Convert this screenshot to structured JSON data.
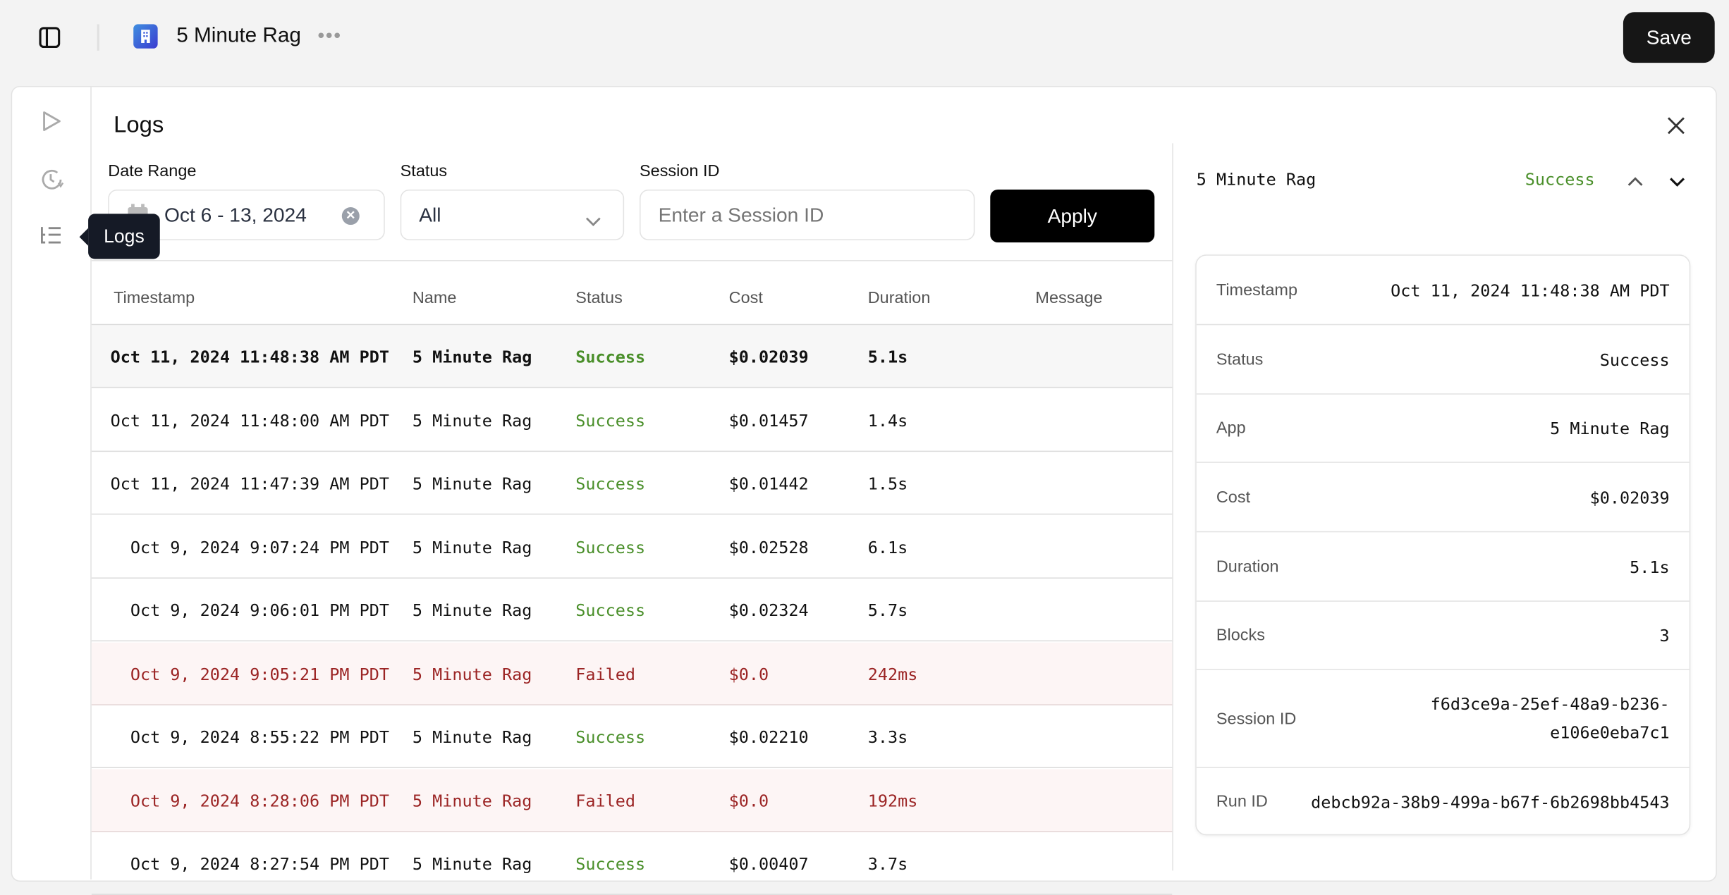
{
  "header": {
    "app_title": "5 Minute Rag",
    "save_label": "Save",
    "app_icon_color": "#3b5bdb"
  },
  "rail": {
    "tooltip": "Logs"
  },
  "logs": {
    "title": "Logs",
    "filters": {
      "date_range_label": "Date Range",
      "date_range_value": "Oct 6 - 13, 2024",
      "status_label": "Status",
      "status_value": "All",
      "session_label": "Session ID",
      "session_placeholder": "Enter a Session ID",
      "apply_label": "Apply"
    },
    "columns": [
      "Timestamp",
      "Name",
      "Status",
      "Cost",
      "Duration",
      "Message"
    ],
    "rows": [
      {
        "timestamp": "Oct 11, 2024 11:48:38 AM PDT",
        "name": "5 Minute Rag",
        "status": "Success",
        "cost": "$0.02039",
        "duration": "5.1s",
        "message": ""
      },
      {
        "timestamp": "Oct 11, 2024 11:48:00 AM PDT",
        "name": "5 Minute Rag",
        "status": "Success",
        "cost": "$0.01457",
        "duration": "1.4s",
        "message": ""
      },
      {
        "timestamp": "Oct 11, 2024 11:47:39 AM PDT",
        "name": "5 Minute Rag",
        "status": "Success",
        "cost": "$0.01442",
        "duration": "1.5s",
        "message": ""
      },
      {
        "timestamp": "Oct 9, 2024 9:07:24 PM PDT",
        "name": "5 Minute Rag",
        "status": "Success",
        "cost": "$0.02528",
        "duration": "6.1s",
        "message": ""
      },
      {
        "timestamp": "Oct 9, 2024 9:06:01 PM PDT",
        "name": "5 Minute Rag",
        "status": "Success",
        "cost": "$0.02324",
        "duration": "5.7s",
        "message": ""
      },
      {
        "timestamp": "Oct 9, 2024 9:05:21 PM PDT",
        "name": "5 Minute Rag",
        "status": "Failed",
        "cost": "$0.0",
        "duration": "242ms",
        "message": ""
      },
      {
        "timestamp": "Oct 9, 2024 8:55:22 PM PDT",
        "name": "5 Minute Rag",
        "status": "Success",
        "cost": "$0.02210",
        "duration": "3.3s",
        "message": ""
      },
      {
        "timestamp": "Oct 9, 2024 8:28:06 PM PDT",
        "name": "5 Minute Rag",
        "status": "Failed",
        "cost": "$0.0",
        "duration": "192ms",
        "message": ""
      },
      {
        "timestamp": "Oct 9, 2024 8:27:54 PM PDT",
        "name": "5 Minute Rag",
        "status": "Success",
        "cost": "$0.00407",
        "duration": "3.7s",
        "message": ""
      }
    ]
  },
  "detail": {
    "name": "5 Minute Rag",
    "status": "Success",
    "fields": [
      {
        "label": "Timestamp",
        "value": "Oct 11, 2024 11:48:38 AM PDT"
      },
      {
        "label": "Status",
        "value": "Success"
      },
      {
        "label": "App",
        "value": "5 Minute Rag"
      },
      {
        "label": "Cost",
        "value": "$0.02039"
      },
      {
        "label": "Duration",
        "value": "5.1s"
      },
      {
        "label": "Blocks",
        "value": "3"
      },
      {
        "label": "Session ID",
        "value": "f6d3ce9a-25ef-48a9-b236-e106e0eba7c1"
      },
      {
        "label": "Run ID",
        "value": "debcb92a-38b9-499a-b67f-6b2698bb4543"
      }
    ]
  },
  "colors": {
    "success": "#4a8f2a",
    "failed": "#9b2424",
    "failed_row_bg": "#fdf5f5",
    "primary_button": "#000000"
  }
}
